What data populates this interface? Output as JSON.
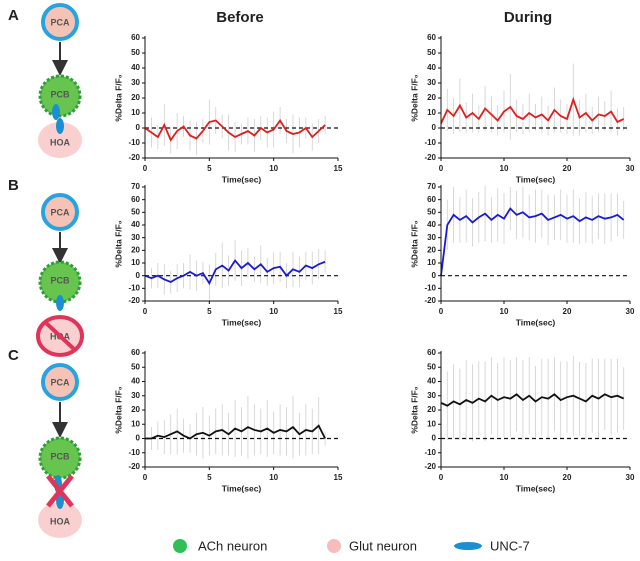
{
  "column_titles": [
    "Before",
    "During"
  ],
  "panels": [
    {
      "letter": "A",
      "nodes": [
        "PCA",
        "PCB",
        "HOA"
      ]
    },
    {
      "letter": "B",
      "nodes": [
        "PCA",
        "PCB",
        "HOA"
      ]
    },
    {
      "letter": "C",
      "nodes": [
        "PCA",
        "PCB",
        "HOA"
      ]
    }
  ],
  "legend": [
    "ACh neuron",
    "Glut neuron",
    "UNC-7"
  ],
  "chart_data": [
    {
      "type": "line",
      "ylabel": "%Delta F/F₀",
      "xlabel": "Time(sec)",
      "baseline": 0,
      "x": [
        0,
        0.5,
        1,
        1.5,
        2,
        2.5,
        3,
        3.5,
        4,
        4.5,
        5,
        5.5,
        6,
        6.5,
        7,
        7.5,
        8,
        8.5,
        9,
        9.5,
        10,
        10.5,
        11,
        11.5,
        12,
        12.5,
        13,
        13.5,
        14
      ],
      "xlim": [
        0,
        15
      ],
      "xticks": [
        0,
        5,
        10,
        15
      ],
      "ylim": [
        -20,
        60
      ],
      "yticks": [
        -20,
        -10,
        0,
        10,
        20,
        30,
        40,
        50,
        60
      ],
      "series": [
        {
          "color": "#e01e1e",
          "values": [
            0,
            -3,
            -6,
            2,
            -8,
            -2,
            1,
            -5,
            -7,
            -2,
            4,
            5,
            1,
            -3,
            -6,
            -4,
            -2,
            -5,
            0,
            -3,
            -1,
            5,
            -2,
            -4,
            -3,
            0,
            -6,
            -2,
            2
          ],
          "errors": [
            6,
            10,
            8,
            14,
            9,
            12,
            7,
            10,
            11,
            8,
            15,
            9,
            8,
            12,
            10,
            7,
            9,
            11,
            8,
            10,
            12,
            9,
            8,
            13,
            10,
            7,
            9,
            8,
            6
          ]
        }
      ]
    },
    {
      "type": "line",
      "ylabel": "%Delta F/F₀",
      "xlabel": "Time(sec)",
      "baseline": 0,
      "x": [
        0,
        1,
        2,
        3,
        4,
        5,
        6,
        7,
        8,
        9,
        10,
        11,
        12,
        13,
        14,
        15,
        16,
        17,
        18,
        19,
        20,
        21,
        22,
        23,
        24,
        25,
        26,
        27,
        28,
        29
      ],
      "xlim": [
        0,
        30
      ],
      "xticks": [
        0,
        10,
        20,
        30
      ],
      "ylim": [
        -20,
        60
      ],
      "yticks": [
        -20,
        -10,
        0,
        10,
        20,
        30,
        40,
        50,
        60
      ],
      "series": [
        {
          "color": "#e01e1e",
          "values": [
            3,
            12,
            8,
            15,
            7,
            10,
            6,
            13,
            9,
            5,
            11,
            14,
            8,
            6,
            10,
            7,
            9,
            5,
            12,
            8,
            6,
            19,
            7,
            10,
            5,
            9,
            8,
            11,
            4,
            6
          ],
          "errors": [
            8,
            14,
            12,
            18,
            10,
            13,
            9,
            15,
            12,
            10,
            14,
            22,
            11,
            10,
            13,
            9,
            12,
            10,
            15,
            11,
            10,
            24,
            12,
            13,
            9,
            12,
            10,
            14,
            9,
            8
          ]
        }
      ]
    },
    {
      "type": "line",
      "ylabel": "%Delta F/F₀",
      "xlabel": "Time(sec)",
      "baseline": 0,
      "x": [
        0,
        0.5,
        1,
        1.5,
        2,
        2.5,
        3,
        3.5,
        4,
        4.5,
        5,
        5.5,
        6,
        6.5,
        7,
        7.5,
        8,
        8.5,
        9,
        9.5,
        10,
        10.5,
        11,
        11.5,
        12,
        12.5,
        13,
        13.5,
        14
      ],
      "xlim": [
        0,
        15
      ],
      "xticks": [
        0,
        5,
        10,
        15
      ],
      "ylim": [
        -20,
        70
      ],
      "yticks": [
        -20,
        -10,
        0,
        10,
        20,
        30,
        40,
        50,
        60,
        70
      ],
      "series": [
        {
          "color": "#1a1ad4",
          "values": [
            0,
            -2,
            0,
            -3,
            -5,
            -2,
            0,
            3,
            0,
            2,
            -6,
            5,
            8,
            4,
            12,
            6,
            10,
            5,
            9,
            3,
            6,
            7,
            0,
            5,
            3,
            8,
            6,
            9,
            11
          ],
          "errors": [
            5,
            8,
            10,
            12,
            9,
            11,
            10,
            14,
            12,
            9,
            15,
            13,
            18,
            12,
            16,
            14,
            12,
            10,
            15,
            11,
            13,
            12,
            10,
            14,
            12,
            11,
            13,
            12,
            9
          ]
        }
      ]
    },
    {
      "type": "line",
      "ylabel": "%Delta F/F₀",
      "xlabel": "Time(sec)",
      "baseline": 0,
      "x": [
        0,
        1,
        2,
        3,
        4,
        5,
        6,
        7,
        8,
        9,
        10,
        11,
        12,
        13,
        14,
        15,
        16,
        17,
        18,
        19,
        20,
        21,
        22,
        23,
        24,
        25,
        26,
        27,
        28,
        29
      ],
      "xlim": [
        0,
        30
      ],
      "xticks": [
        0,
        10,
        20,
        30
      ],
      "ylim": [
        -20,
        70
      ],
      "yticks": [
        -20,
        -10,
        0,
        10,
        20,
        30,
        40,
        50,
        60,
        70
      ],
      "series": [
        {
          "color": "#1a1ad4",
          "values": [
            0,
            40,
            48,
            44,
            47,
            42,
            46,
            49,
            44,
            48,
            45,
            53,
            48,
            50,
            46,
            47,
            49,
            44,
            46,
            48,
            45,
            47,
            43,
            46,
            44,
            47,
            45,
            46,
            48,
            44
          ],
          "errors": [
            5,
            20,
            22,
            18,
            21,
            19,
            20,
            22,
            18,
            21,
            20,
            17,
            19,
            20,
            18,
            21,
            19,
            20,
            18,
            20,
            19,
            21,
            18,
            20,
            19,
            18,
            20,
            19,
            17,
            15
          ]
        }
      ]
    },
    {
      "type": "line",
      "ylabel": "%Delta F/F₀",
      "xlabel": "Time(sec)",
      "baseline": 0,
      "x": [
        0,
        0.5,
        1,
        1.5,
        2,
        2.5,
        3,
        3.5,
        4,
        4.5,
        5,
        5.5,
        6,
        6.5,
        7,
        7.5,
        8,
        8.5,
        9,
        9.5,
        10,
        10.5,
        11,
        11.5,
        12,
        12.5,
        13,
        13.5,
        14
      ],
      "xlim": [
        0,
        15
      ],
      "xticks": [
        0,
        5,
        10,
        15
      ],
      "ylim": [
        -20,
        60
      ],
      "yticks": [
        -20,
        -10,
        0,
        10,
        20,
        30,
        40,
        50,
        60
      ],
      "series": [
        {
          "color": "#111111",
          "values": [
            0,
            0,
            2,
            1,
            3,
            5,
            2,
            0,
            3,
            4,
            2,
            5,
            6,
            3,
            7,
            5,
            8,
            6,
            5,
            7,
            4,
            6,
            5,
            8,
            3,
            6,
            5,
            9,
            0
          ],
          "errors": [
            4,
            8,
            10,
            12,
            14,
            16,
            12,
            10,
            15,
            18,
            14,
            16,
            18,
            15,
            20,
            17,
            22,
            18,
            16,
            20,
            15,
            18,
            17,
            22,
            15,
            18,
            16,
            20,
            5
          ]
        }
      ]
    },
    {
      "type": "line",
      "ylabel": "%Delta F/F₀",
      "xlabel": "Time(sec)",
      "baseline": 0,
      "x": [
        0,
        1,
        2,
        3,
        4,
        5,
        6,
        7,
        8,
        9,
        10,
        11,
        12,
        13,
        14,
        15,
        16,
        17,
        18,
        19,
        20,
        21,
        22,
        23,
        24,
        25,
        26,
        27,
        28,
        29
      ],
      "xlim": [
        0,
        30
      ],
      "xticks": [
        0,
        10,
        20,
        30
      ],
      "ylim": [
        -20,
        60
      ],
      "yticks": [
        -20,
        -10,
        0,
        10,
        20,
        30,
        40,
        50,
        60
      ],
      "series": [
        {
          "color": "#111111",
          "values": [
            25,
            23,
            26,
            24,
            27,
            25,
            28,
            26,
            30,
            27,
            29,
            28,
            31,
            27,
            30,
            26,
            29,
            28,
            31,
            27,
            29,
            30,
            28,
            26,
            30,
            28,
            31,
            29,
            30,
            28
          ],
          "errors": [
            22,
            24,
            26,
            25,
            28,
            27,
            26,
            28,
            27,
            26,
            28,
            27,
            26,
            28,
            27,
            25,
            27,
            28,
            26,
            27,
            25,
            28,
            26,
            27,
            26,
            28,
            25,
            27,
            26,
            22
          ]
        }
      ]
    }
  ]
}
